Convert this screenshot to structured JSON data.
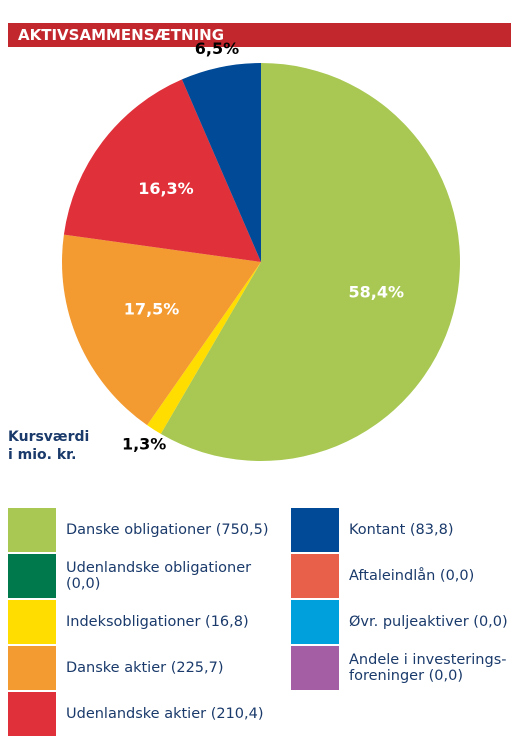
{
  "chart_data": {
    "type": "pie",
    "title": "AKTIVSAMMENSÆTNING",
    "annotation": [
      "Kursværdi",
      "i mio. kr."
    ],
    "categories": [
      "Danske obligationer (750,5)",
      "Udenlandske obligationer (0,0)",
      "Indeksobligationer (16,8)",
      "Danske aktier (225,7)",
      "Udenlandske aktier (210,4)",
      "Kontant (83,8)",
      "Aftaleindlån (0,0)",
      "Øvr. puljeaktiver (0,0)",
      "Andele i investerings-foreninger (0,0)"
    ],
    "values": [
      58.4,
      0,
      1.3,
      17.5,
      16.3,
      6.5,
      0,
      0,
      0
    ],
    "value_labels": [
      "58,4%",
      null,
      "1,3%",
      "17,5%",
      "16,3%",
      "6,5%",
      null,
      null,
      null
    ],
    "colors": [
      "#a8c853",
      "#007a4d",
      "#ffdd00",
      "#f39a31",
      "#e0303a",
      "#004a97",
      "#e8604a",
      "#00a0dc",
      "#a45ea4"
    ],
    "legend_columns": 2
  }
}
